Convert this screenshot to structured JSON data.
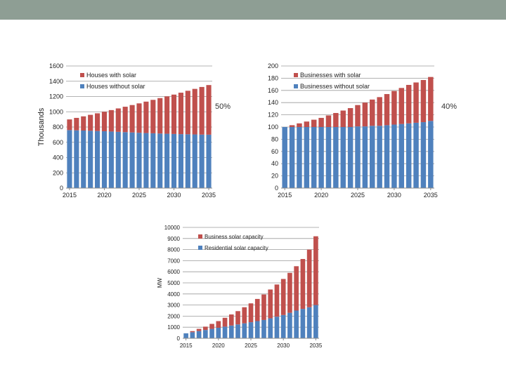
{
  "colors": {
    "top_bar": "#8e9e94",
    "red": "#c0504d",
    "blue": "#4f81bd",
    "grid": "#9a9a9a"
  },
  "annotations": {
    "houses_share": "50%",
    "businesses_share": "40%"
  },
  "chart_data": [
    {
      "type": "bar",
      "stacked": true,
      "title": "",
      "ylabel": "Thousands",
      "xlabel": "",
      "ylim": [
        0,
        1600
      ],
      "yticks": [
        0,
        200,
        400,
        600,
        800,
        1000,
        1200,
        1400,
        1600
      ],
      "xtick_labels": [
        "2015",
        "2020",
        "2025",
        "2030",
        "2035"
      ],
      "legend_position": "top-left",
      "categories": [
        "2015",
        "2016",
        "2017",
        "2018",
        "2019",
        "2020",
        "2021",
        "2022",
        "2023",
        "2024",
        "2025",
        "2026",
        "2027",
        "2028",
        "2029",
        "2030",
        "2031",
        "2032",
        "2033",
        "2034",
        "2035"
      ],
      "series": [
        {
          "name": "Houses without solar",
          "color": "#4f81bd",
          "values": [
            760,
            757,
            754,
            751,
            748,
            745,
            741,
            737,
            733,
            729,
            725,
            721,
            718,
            715,
            712,
            709,
            707,
            705,
            703,
            701,
            700
          ]
        },
        {
          "name": "Houses with solar",
          "color": "#c0504d",
          "values": [
            140,
            163,
            186,
            209,
            232,
            255,
            281,
            307,
            333,
            359,
            385,
            412,
            438,
            464,
            490,
            516,
            543,
            570,
            597,
            624,
            650
          ]
        }
      ]
    },
    {
      "type": "bar",
      "stacked": true,
      "title": "",
      "ylabel": "",
      "xlabel": "",
      "ylim": [
        0,
        200
      ],
      "yticks": [
        0,
        20,
        40,
        60,
        80,
        100,
        120,
        140,
        160,
        180,
        200
      ],
      "xtick_labels": [
        "2015",
        "2020",
        "2025",
        "2030",
        "2035"
      ],
      "legend_position": "top-left",
      "categories": [
        "2015",
        "2016",
        "2017",
        "2018",
        "2019",
        "2020",
        "2021",
        "2022",
        "2023",
        "2024",
        "2025",
        "2026",
        "2027",
        "2028",
        "2029",
        "2030",
        "2031",
        "2032",
        "2033",
        "2034",
        "2035"
      ],
      "series": [
        {
          "name": "Businesses without solar",
          "color": "#4f81bd",
          "values": [
            100,
            100,
            100,
            100,
            100,
            100,
            100,
            100,
            100,
            100,
            101,
            101,
            102,
            102,
            103,
            104,
            105,
            106,
            107,
            108,
            110
          ]
        },
        {
          "name": "Businesses with solar",
          "color": "#c0504d",
          "values": [
            0,
            3,
            6,
            9,
            12,
            15,
            19,
            23,
            27,
            31,
            35,
            39,
            43,
            47,
            51,
            55,
            59,
            63,
            66,
            69,
            72
          ]
        }
      ]
    },
    {
      "type": "bar",
      "stacked": true,
      "title": "",
      "ylabel": "MW",
      "xlabel": "",
      "ylim": [
        0,
        10000
      ],
      "yticks": [
        0,
        1000,
        2000,
        3000,
        4000,
        5000,
        6000,
        7000,
        8000,
        9000,
        10000
      ],
      "xtick_labels": [
        "2015",
        "2020",
        "2025",
        "2030",
        "2035"
      ],
      "legend_position": "top-left",
      "categories": [
        "2015",
        "2016",
        "2017",
        "2018",
        "2019",
        "2020",
        "2021",
        "2022",
        "2023",
        "2024",
        "2025",
        "2026",
        "2027",
        "2028",
        "2029",
        "2030",
        "2031",
        "2032",
        "2033",
        "2034",
        "2035"
      ],
      "series": [
        {
          "name": "Residential solar capacity",
          "color": "#4f81bd",
          "values": [
            450,
            550,
            650,
            750,
            850,
            950,
            1050,
            1150,
            1250,
            1350,
            1450,
            1550,
            1650,
            1800,
            1950,
            2100,
            2300,
            2500,
            2650,
            2800,
            3000
          ]
        },
        {
          "name": "Business solar capacity",
          "color": "#c0504d",
          "values": [
            0,
            100,
            200,
            300,
            450,
            600,
            800,
            1000,
            1200,
            1450,
            1700,
            2000,
            2300,
            2600,
            2900,
            3250,
            3600,
            4000,
            4500,
            5200,
            6200
          ]
        }
      ]
    }
  ]
}
